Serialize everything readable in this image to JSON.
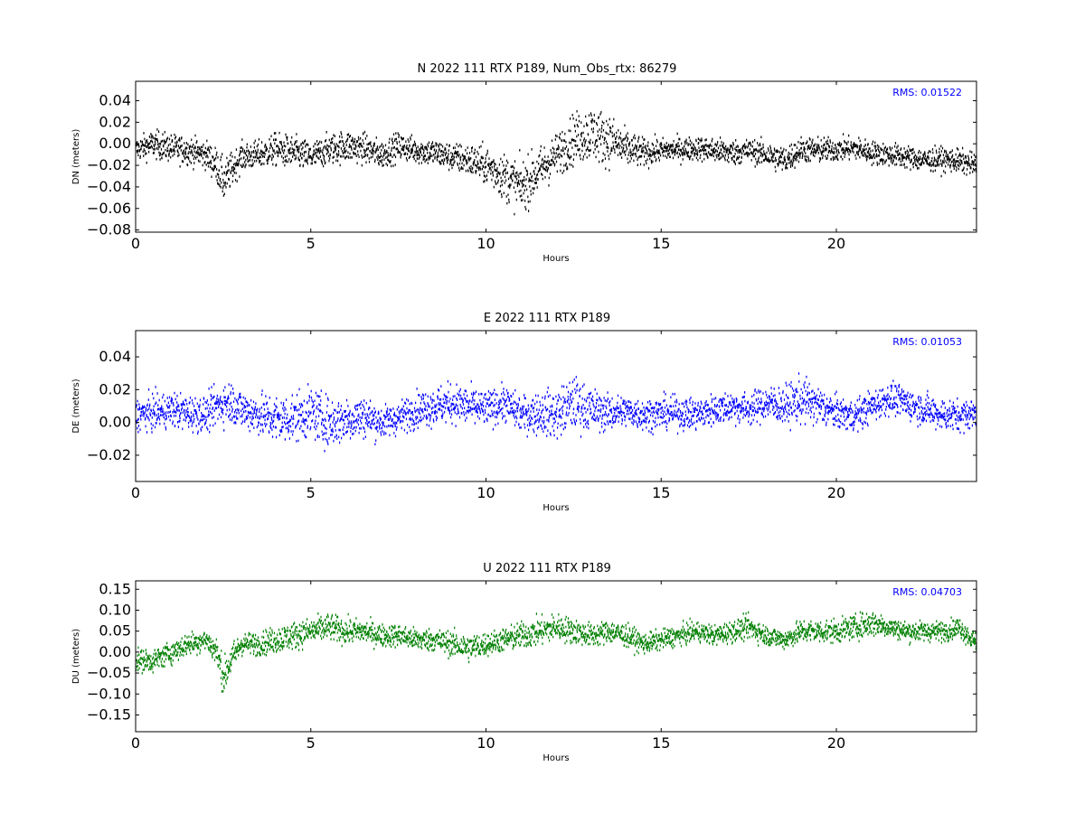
{
  "chart_data": [
    {
      "type": "scatter",
      "title": "N 2022 111 RTX  P189, Num_Obs_rtx: 86279",
      "xlabel": "Hours",
      "ylabel": "DN (meters)",
      "xlim": [
        0,
        24
      ],
      "ylim": [
        -0.082,
        0.058
      ],
      "xticks": [
        0,
        5,
        10,
        15,
        20
      ],
      "yticks": [
        -0.08,
        -0.06,
        -0.04,
        -0.02,
        0.0,
        0.02,
        0.04
      ],
      "ytick_labels": [
        "−0.08",
        "−0.06",
        "−0.04",
        "−0.02",
        "0.00",
        "0.02",
        "0.04"
      ],
      "color": "#000000",
      "annotation": "RMS:  0.01522",
      "grid": false,
      "series": [
        {
          "x": [
            0.0,
            0.5,
            1.0,
            1.5,
            2.0,
            2.3,
            2.5,
            2.7,
            3.0,
            3.5,
            4.0,
            4.5,
            5.0,
            5.5,
            6.0,
            6.5,
            7.0,
            7.5,
            8.0,
            8.5,
            9.0,
            9.5,
            10.0,
            10.5,
            11.0,
            11.5,
            12.0,
            12.5,
            13.0,
            13.5,
            14.0,
            14.5,
            15.0,
            15.5,
            16.0,
            16.5,
            17.0,
            17.5,
            18.0,
            18.5,
            19.0,
            19.5,
            20.0,
            20.5,
            21.0,
            21.5,
            22.0,
            22.5,
            23.0,
            23.5,
            24.0
          ],
          "y": [
            -0.005,
            0.0,
            -0.004,
            -0.006,
            -0.01,
            -0.02,
            -0.035,
            -0.025,
            -0.012,
            -0.01,
            -0.005,
            -0.008,
            -0.012,
            -0.005,
            -0.002,
            -0.004,
            -0.01,
            -0.002,
            -0.006,
            -0.008,
            -0.012,
            -0.015,
            -0.02,
            -0.03,
            -0.04,
            -0.025,
            -0.01,
            0.005,
            0.01,
            0.004,
            -0.005,
            -0.008,
            -0.006,
            -0.005,
            -0.004,
            -0.006,
            -0.008,
            -0.006,
            -0.01,
            -0.015,
            -0.005,
            -0.006,
            -0.005,
            -0.004,
            -0.008,
            -0.01,
            -0.012,
            -0.015,
            -0.014,
            -0.016,
            -0.02
          ],
          "spread": [
            0.01,
            0.012,
            0.012,
            0.012,
            0.012,
            0.015,
            0.018,
            0.015,
            0.012,
            0.012,
            0.014,
            0.014,
            0.013,
            0.013,
            0.014,
            0.013,
            0.012,
            0.012,
            0.011,
            0.012,
            0.012,
            0.014,
            0.016,
            0.02,
            0.022,
            0.02,
            0.018,
            0.022,
            0.024,
            0.022,
            0.016,
            0.012,
            0.01,
            0.01,
            0.01,
            0.011,
            0.011,
            0.01,
            0.011,
            0.012,
            0.011,
            0.011,
            0.01,
            0.01,
            0.01,
            0.01,
            0.01,
            0.01,
            0.01,
            0.01,
            0.01
          ]
        }
      ]
    },
    {
      "type": "scatter",
      "title": "E 2022 111 RTX  P189",
      "xlabel": "Hours",
      "ylabel": "DE (meters)",
      "xlim": [
        0,
        24
      ],
      "ylim": [
        -0.036,
        0.056
      ],
      "xticks": [
        0,
        5,
        10,
        15,
        20
      ],
      "yticks": [
        -0.02,
        0.0,
        0.02,
        0.04
      ],
      "ytick_labels": [
        "−0.02",
        "0.00",
        "0.02",
        "0.04"
      ],
      "color": "#0000ff",
      "annotation": "RMS:  0.01053",
      "grid": false,
      "series": [
        {
          "x": [
            0.0,
            0.5,
            1.0,
            1.5,
            2.0,
            2.3,
            2.5,
            2.7,
            3.0,
            3.5,
            4.0,
            4.5,
            5.0,
            5.5,
            6.0,
            6.5,
            7.0,
            7.5,
            8.0,
            8.5,
            9.0,
            9.5,
            10.0,
            10.5,
            11.0,
            11.5,
            12.0,
            12.5,
            13.0,
            13.5,
            14.0,
            14.5,
            15.0,
            15.5,
            16.0,
            16.5,
            17.0,
            17.5,
            18.0,
            18.5,
            19.0,
            19.5,
            20.0,
            20.5,
            21.0,
            21.5,
            22.0,
            22.5,
            23.0,
            23.5,
            24.0
          ],
          "y": [
            0.005,
            0.006,
            0.008,
            0.006,
            0.005,
            0.01,
            0.012,
            0.013,
            0.008,
            0.005,
            0.002,
            0.003,
            0.006,
            0.0,
            0.002,
            0.004,
            0.0,
            0.003,
            0.008,
            0.01,
            0.012,
            0.01,
            0.008,
            0.012,
            0.005,
            0.006,
            0.005,
            0.012,
            0.008,
            0.006,
            0.007,
            0.005,
            0.006,
            0.006,
            0.005,
            0.008,
            0.01,
            0.008,
            0.012,
            0.01,
            0.014,
            0.01,
            0.006,
            0.004,
            0.01,
            0.015,
            0.012,
            0.008,
            0.005,
            0.004,
            0.006
          ],
          "spread": [
            0.009,
            0.01,
            0.01,
            0.01,
            0.01,
            0.011,
            0.012,
            0.012,
            0.011,
            0.012,
            0.014,
            0.014,
            0.014,
            0.014,
            0.013,
            0.012,
            0.009,
            0.009,
            0.01,
            0.011,
            0.011,
            0.011,
            0.01,
            0.01,
            0.01,
            0.012,
            0.014,
            0.015,
            0.012,
            0.01,
            0.009,
            0.009,
            0.009,
            0.009,
            0.009,
            0.009,
            0.009,
            0.009,
            0.01,
            0.011,
            0.013,
            0.011,
            0.009,
            0.009,
            0.009,
            0.009,
            0.009,
            0.009,
            0.009,
            0.009,
            0.009
          ]
        }
      ]
    },
    {
      "type": "scatter",
      "title": "U 2022 111 RTX  P189",
      "xlabel": "Hours",
      "ylabel": "DU (meters)",
      "xlim": [
        0,
        24
      ],
      "ylim": [
        -0.19,
        0.17
      ],
      "xticks": [
        0,
        5,
        10,
        15,
        20
      ],
      "yticks": [
        -0.15,
        -0.1,
        -0.05,
        0.0,
        0.05,
        0.1,
        0.15
      ],
      "ytick_labels": [
        "−0.15",
        "−0.10",
        "−0.05",
        "0.00",
        "0.05",
        "0.10",
        "0.15"
      ],
      "color": "#008000",
      "annotation": "RMS:  0.04703",
      "grid": false,
      "series": [
        {
          "x": [
            0.0,
            0.5,
            1.0,
            1.5,
            2.0,
            2.3,
            2.5,
            2.7,
            3.0,
            3.5,
            4.0,
            4.5,
            5.0,
            5.5,
            6.0,
            6.5,
            7.0,
            7.5,
            8.0,
            8.5,
            9.0,
            9.5,
            10.0,
            10.5,
            11.0,
            11.5,
            12.0,
            12.5,
            13.0,
            13.5,
            14.0,
            14.5,
            15.0,
            15.5,
            16.0,
            16.5,
            17.0,
            17.5,
            18.0,
            18.5,
            19.0,
            19.5,
            20.0,
            20.5,
            21.0,
            21.5,
            22.0,
            22.5,
            23.0,
            23.5,
            24.0
          ],
          "y": [
            -0.02,
            -0.02,
            0.0,
            0.02,
            0.03,
            0.0,
            -0.06,
            -0.02,
            0.02,
            0.02,
            0.03,
            0.04,
            0.05,
            0.06,
            0.05,
            0.05,
            0.04,
            0.04,
            0.03,
            0.03,
            0.02,
            0.01,
            0.02,
            0.03,
            0.04,
            0.05,
            0.06,
            0.05,
            0.04,
            0.05,
            0.04,
            0.02,
            0.03,
            0.04,
            0.05,
            0.04,
            0.05,
            0.06,
            0.04,
            0.03,
            0.05,
            0.05,
            0.05,
            0.06,
            0.07,
            0.06,
            0.05,
            0.05,
            0.05,
            0.06,
            0.02
          ],
          "spread": [
            0.025,
            0.025,
            0.025,
            0.025,
            0.025,
            0.03,
            0.04,
            0.035,
            0.025,
            0.025,
            0.03,
            0.03,
            0.03,
            0.03,
            0.028,
            0.026,
            0.025,
            0.025,
            0.025,
            0.025,
            0.028,
            0.03,
            0.026,
            0.026,
            0.03,
            0.032,
            0.03,
            0.028,
            0.026,
            0.026,
            0.025,
            0.022,
            0.022,
            0.022,
            0.022,
            0.022,
            0.024,
            0.026,
            0.022,
            0.022,
            0.026,
            0.026,
            0.026,
            0.026,
            0.03,
            0.022,
            0.022,
            0.022,
            0.022,
            0.022,
            0.022
          ]
        }
      ]
    }
  ]
}
